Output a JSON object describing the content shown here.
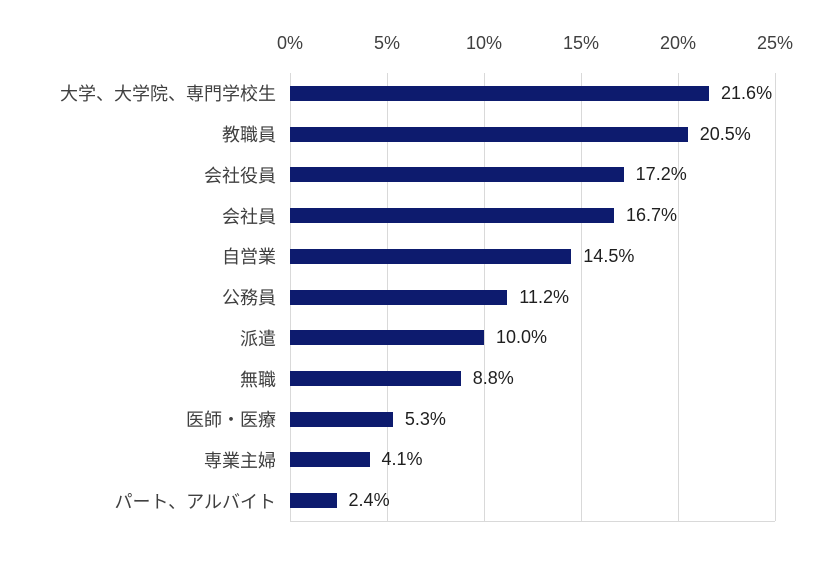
{
  "chart_data": {
    "type": "bar",
    "orientation": "horizontal",
    "title": "",
    "xlabel": "",
    "ylabel": "",
    "categories": [
      "大学、大学院、専門学校生",
      "教職員",
      "会社役員",
      "会社員",
      "自営業",
      "公務員",
      "派遣",
      "無職",
      "医師・医療",
      "専業主婦",
      "パート、アルバイト"
    ],
    "values": [
      21.6,
      20.5,
      17.2,
      16.7,
      14.5,
      11.2,
      10.0,
      8.8,
      5.3,
      4.1,
      2.4
    ],
    "value_labels": [
      "21.6%",
      "20.5%",
      "17.2%",
      "16.7%",
      "14.5%",
      "11.2%",
      "10.0%",
      "8.8%",
      "5.3%",
      "4.1%",
      "2.4%"
    ],
    "x_ticks": [
      "0%",
      "5%",
      "10%",
      "15%",
      "20%",
      "25%"
    ],
    "x_tick_values": [
      0,
      5,
      10,
      15,
      20,
      25
    ],
    "xlim": [
      0,
      25
    ],
    "axis_position": "top",
    "grid": true,
    "legend": "none",
    "colors": {
      "bar": "#0d1b6e",
      "gridline": "#d9d9d9",
      "tick_text": "#404040",
      "category_text": "#404040",
      "value_text": "#1f1f1f",
      "background": "#ffffff"
    }
  }
}
